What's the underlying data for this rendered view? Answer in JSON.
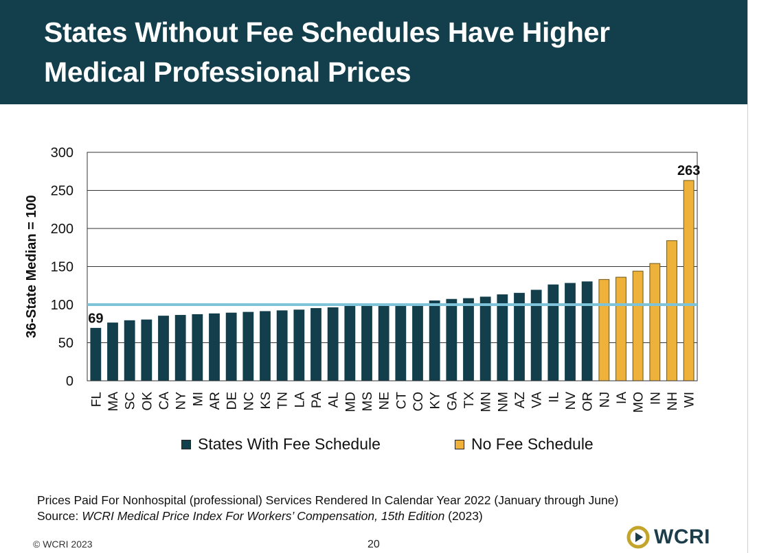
{
  "title_line1": "States Without Fee Schedules Have Higher",
  "title_line2": "Medical Professional Prices",
  "colors": {
    "header_bg": "#133f4c",
    "fee_schedule": "#133f4c",
    "no_fee_schedule": "#eeb13a",
    "median_line": "#7ec3d8"
  },
  "chart_data": {
    "type": "bar",
    "ylabel": "36-State Median = 100",
    "ylim": [
      0,
      300
    ],
    "yticks": [
      0,
      50,
      100,
      150,
      200,
      250,
      300
    ],
    "reference_line": 100,
    "grid": true,
    "legend_position": "bottom",
    "categories": [
      "FL",
      "MA",
      "SC",
      "OK",
      "CA",
      "NY",
      "MI",
      "AR",
      "DE",
      "NC",
      "KS",
      "TN",
      "LA",
      "PA",
      "AL",
      "MD",
      "MS",
      "NE",
      "CT",
      "CO",
      "KY",
      "GA",
      "TX",
      "MN",
      "NM",
      "AZ",
      "VA",
      "IL",
      "NV",
      "OR",
      "NJ",
      "IA",
      "MO",
      "IN",
      "NH",
      "WI"
    ],
    "values": [
      69,
      76,
      79,
      80,
      85,
      86,
      87,
      88,
      89,
      90,
      91,
      92,
      93,
      95,
      96,
      98,
      99,
      99,
      100,
      101,
      105,
      107,
      108,
      110,
      113,
      115,
      119,
      126,
      128,
      130,
      133,
      136,
      144,
      154,
      184,
      263
    ],
    "groups": [
      "fee",
      "fee",
      "fee",
      "fee",
      "fee",
      "fee",
      "fee",
      "fee",
      "fee",
      "fee",
      "fee",
      "fee",
      "fee",
      "fee",
      "fee",
      "fee",
      "fee",
      "fee",
      "fee",
      "fee",
      "fee",
      "fee",
      "fee",
      "fee",
      "fee",
      "fee",
      "fee",
      "fee",
      "fee",
      "fee",
      "nofee",
      "nofee",
      "nofee",
      "nofee",
      "nofee",
      "nofee"
    ],
    "series": [
      {
        "name": "States With Fee Schedule"
      },
      {
        "name": "No Fee Schedule"
      }
    ],
    "annotations": [
      {
        "category": "FL",
        "text": "69"
      },
      {
        "category": "WI",
        "text": "263"
      }
    ]
  },
  "notes_line1": "Prices Paid For Nonhospital (professional) Services Rendered In Calendar Year 2022 (January through June)",
  "source_label": "Source: ",
  "source_title": "WCRI Medical Price Index For Workers’ Compensation, 15th Edition",
  "source_year": " (2023)",
  "copyright": "© WCRI 2023",
  "page_number": "20",
  "logo_text": "WCRI"
}
